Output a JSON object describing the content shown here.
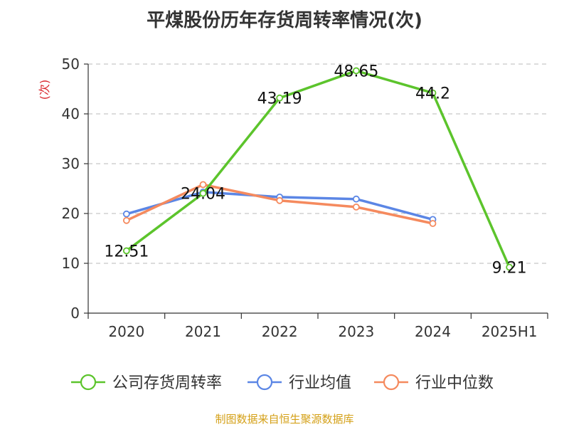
{
  "title": "平煤股份历年存货周转率情况(次)",
  "source": "制图数据来自恒生聚源数据库",
  "chart_data": {
    "type": "line",
    "title": "平煤股份历年存货周转率情况(次)",
    "ylabel": "(次)",
    "xlabel": "",
    "categories": [
      "2020",
      "2021",
      "2022",
      "2023",
      "2024",
      "2025H1"
    ],
    "ylim": [
      0,
      50
    ],
    "yticks": [
      0,
      10,
      20,
      30,
      40,
      50
    ],
    "grid": true,
    "legend_position": "bottom",
    "series": [
      {
        "name": "公司存货周转率",
        "color": "#5cc42c",
        "values": [
          12.51,
          24.04,
          43.19,
          48.65,
          44.2,
          9.21
        ],
        "labels": [
          "12.51",
          "24.04",
          "43.19",
          "48.65",
          "44.2",
          "9.21"
        ]
      },
      {
        "name": "行业均值",
        "color": "#5b86e5",
        "values": [
          19.9,
          24.3,
          23.3,
          22.9,
          18.8,
          null
        ]
      },
      {
        "name": "行业中位数",
        "color": "#f58a5e",
        "values": [
          18.6,
          25.8,
          22.6,
          21.3,
          18.0,
          null
        ]
      }
    ]
  }
}
